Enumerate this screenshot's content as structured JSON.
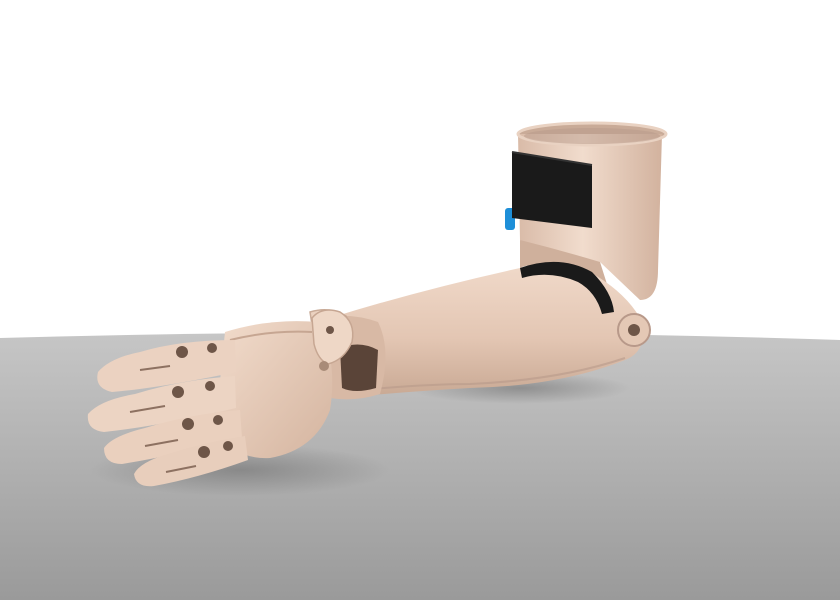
{
  "scene": {
    "subject": "prosthetic-arm-render",
    "colors": {
      "background_top": "#ffffff",
      "floor_near": "#9c9c9c",
      "floor_far": "#c4c4c4",
      "shell": "#ecd3c2",
      "shell_shade": "#c9ab98",
      "shell_dark": "#a88b78",
      "strap": "#1a1a1a",
      "accent_clip": "#1e8fd8",
      "joint_hole": "#6e5648"
    }
  }
}
